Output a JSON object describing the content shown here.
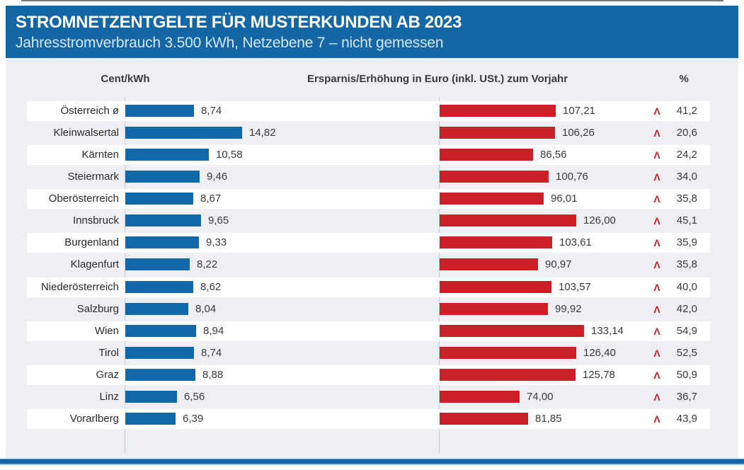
{
  "header": {
    "title": "STROMNETZENTGELTE FÜR MUSTERKUNDEN AB 2023",
    "subtitle": "Jahresstromverbrauch 3.500 kWh, Netzebene 7 – nicht gemessen"
  },
  "columns": {
    "left": "Cent/kWh",
    "middle": "Ersparnis/Erhöhung in Euro (inkl. USt.) zum Vorjahr",
    "right": "%"
  },
  "chart_data": {
    "type": "bar",
    "orientation": "horizontal",
    "grid": false,
    "legend": "none",
    "title": "STROMNETZENTGELTE FÜR MUSTERKUNDEN AB 2023",
    "subtitle": "Jahresstromverbrauch 3.500 kWh, Netzebene 7 – nicht gemessen",
    "categories": [
      "Österreich ø",
      "Kleinwalsertal",
      "Kärnten",
      "Steiermark",
      "Oberösterreich",
      "Innsbruck",
      "Burgenland",
      "Klagenfurt",
      "Niederösterreich",
      "Salzburg",
      "Wien",
      "Tirol",
      "Graz",
      "Linz",
      "Vorarlberg"
    ],
    "series": [
      {
        "name": "Cent/kWh",
        "color": "#1268a9",
        "values": [
          8.74,
          14.82,
          10.58,
          9.46,
          8.67,
          9.65,
          9.33,
          8.22,
          8.62,
          8.04,
          8.94,
          8.74,
          8.88,
          6.56,
          6.39
        ],
        "labels": [
          "8,74",
          "14,82",
          "10,58",
          "9,46",
          "8,67",
          "9,65",
          "9,33",
          "8,22",
          "8,62",
          "8,04",
          "8,94",
          "8,74",
          "8,88",
          "6,56",
          "6,39"
        ]
      },
      {
        "name": "Ersparnis/Erhöhung in Euro (inkl. USt.) zum Vorjahr",
        "color": "#c92127",
        "values": [
          107.21,
          106.26,
          86.56,
          100.76,
          96.01,
          126.0,
          103.61,
          90.97,
          103.57,
          99.92,
          133.14,
          126.4,
          125.78,
          74.0,
          81.85
        ],
        "labels": [
          "107,21",
          "106,26",
          "86,56",
          "100,76",
          "96,01",
          "126,00",
          "103,61",
          "90,97",
          "103,57",
          "99,92",
          "133,14",
          "126,40",
          "125,78",
          "74,00",
          "81,85"
        ]
      },
      {
        "name": "% zum Vorjahr",
        "values": [
          41.2,
          20.6,
          24.2,
          34.0,
          35.8,
          45.1,
          35.9,
          35.8,
          40.0,
          42.0,
          54.9,
          52.5,
          50.9,
          36.7,
          43.9
        ],
        "labels": [
          "41,2",
          "20,6",
          "24,2",
          "34,0",
          "35,8",
          "45,1",
          "35,9",
          "35,8",
          "40,0",
          "42,0",
          "54,9",
          "52,5",
          "50,9",
          "36,7",
          "43,9"
        ]
      }
    ],
    "annotations": {
      "increase_arrow_glyph": "Λ",
      "increase_arrow_meaning": "Erhöhung zum Vorjahr"
    }
  },
  "colors": {
    "header_bg": "#1566a4",
    "subtitle_text": "#cfe8f8",
    "content_bg": "#edeff2",
    "band_white": "#ffffff",
    "bar_blue": "#1268a9",
    "bar_red": "#c92127",
    "arrow_red": "#c92127",
    "axis_line": "#c2ccd4",
    "text_dark": "#3a3a3a",
    "bottom_bar": "#1566a4"
  }
}
